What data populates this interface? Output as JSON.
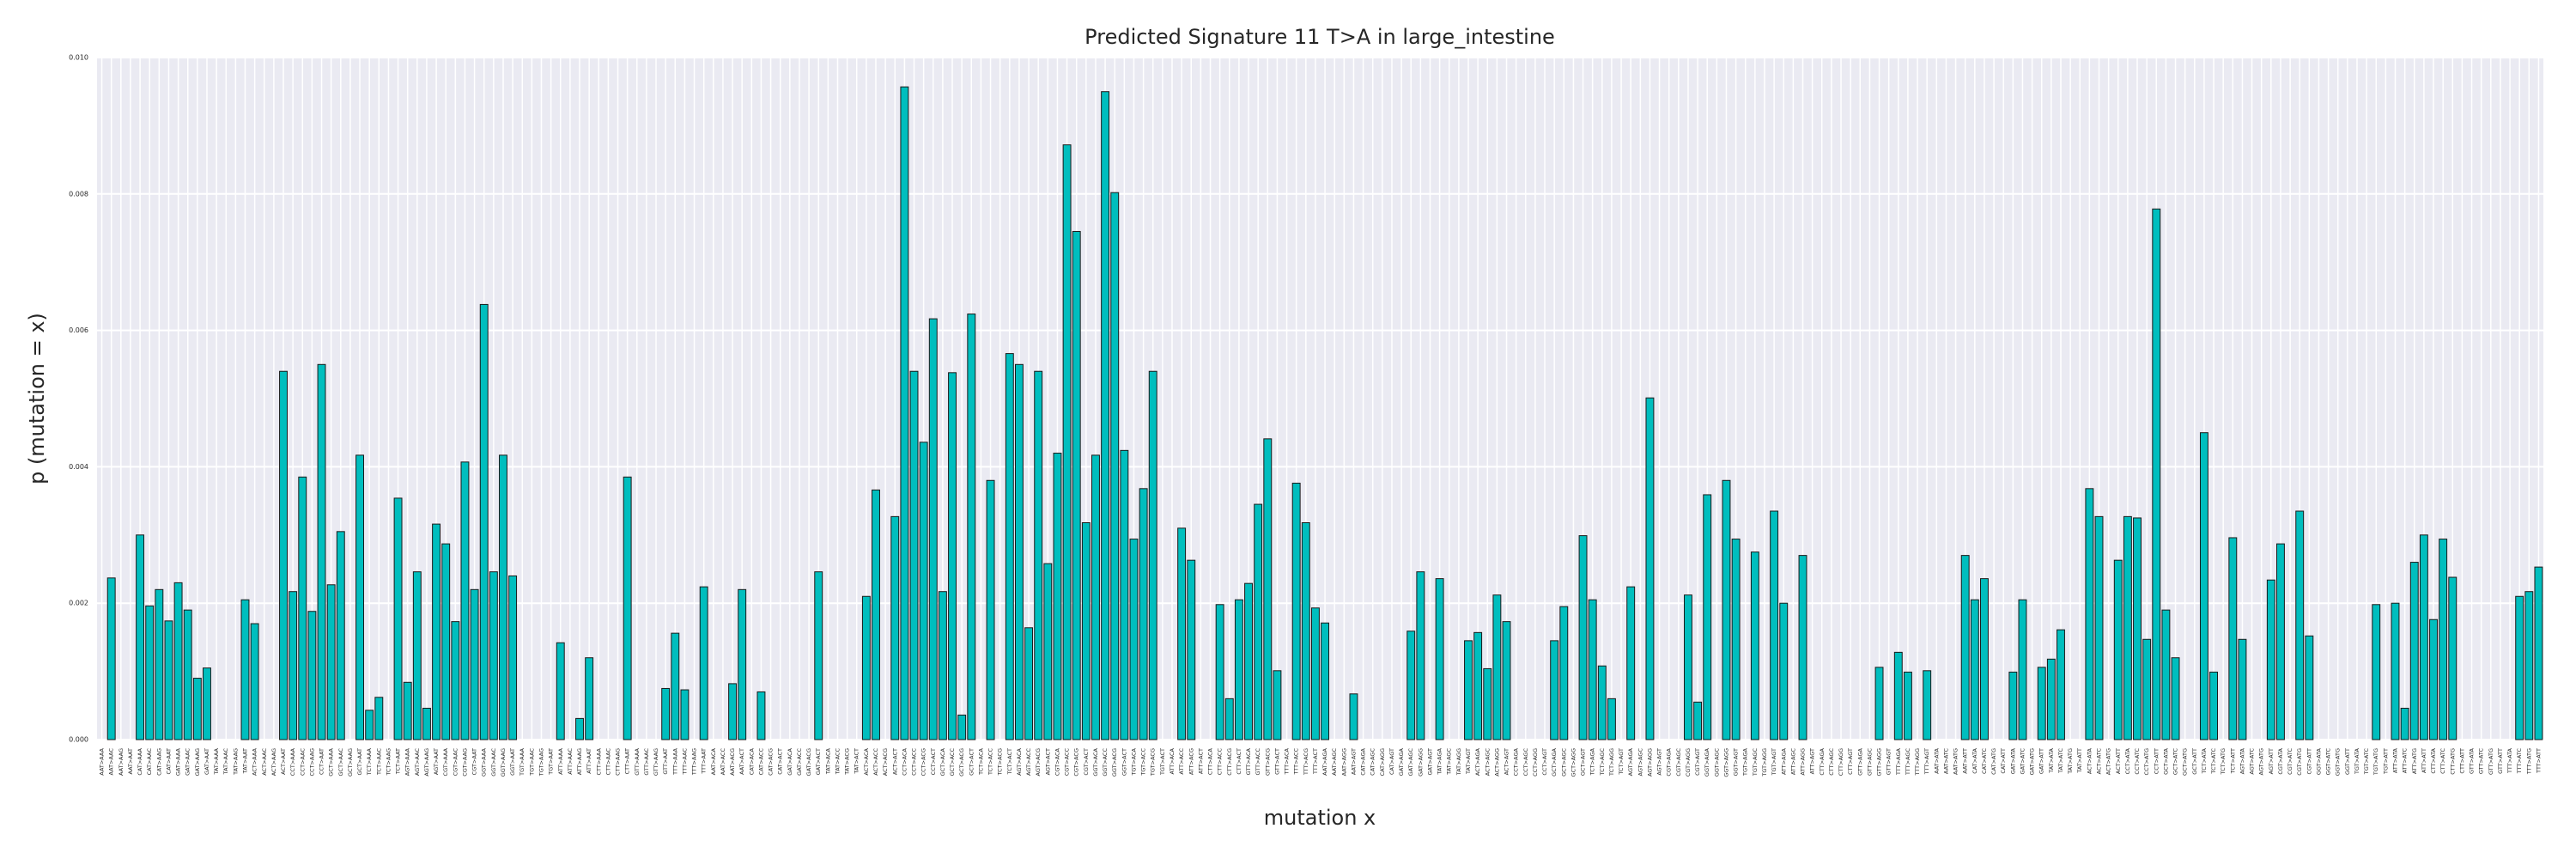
{
  "chart_data": {
    "type": "bar",
    "title": "Predicted Signature 11 T>A in large_intestine",
    "x_label": "mutation x",
    "y_label": "p (mutation = x)",
    "color": "#00bebe",
    "edge_color": "#1a1a1a",
    "background": "#eaeaf2",
    "grid": true,
    "ylim": [
      0,
      0.01
    ],
    "yticks": [
      {
        "value": 0,
        "label": "0.000"
      },
      {
        "value": 0.002,
        "label": "0.002"
      },
      {
        "value": 0.004,
        "label": "0.004"
      },
      {
        "value": 0.006,
        "label": "0.006"
      },
      {
        "value": 0.008,
        "label": "0.008"
      },
      {
        "value": 0.01,
        "label": "0.010"
      }
    ],
    "categories": [
      "AAT>AAA",
      "AAT>AAC",
      "AAT>AAG",
      "AAT>AAT",
      "CAT>AAA",
      "CAT>AAC",
      "CAT>AAG",
      "CAT>AAT",
      "GAT>AAA",
      "GAT>AAC",
      "GAT>AAG",
      "GAT>AAT",
      "TAT>AAA",
      "TAT>AAC",
      "TAT>AAG",
      "TAT>AAT",
      "ACT>AAA",
      "ACT>AAC",
      "ACT>AAG",
      "ACT>AAT",
      "CCT>AAA",
      "CCT>AAC",
      "CCT>AAG",
      "CCT>AAT",
      "GCT>AAA",
      "GCT>AAC",
      "GCT>AAG",
      "GCT>AAT",
      "TCT>AAA",
      "TCT>AAC",
      "TCT>AAG",
      "TCT>AAT",
      "AGT>AAA",
      "AGT>AAC",
      "AGT>AAG",
      "AGT>AAT",
      "CGT>AAA",
      "CGT>AAC",
      "CGT>AAG",
      "CGT>AAT",
      "GGT>AAA",
      "GGT>AAC",
      "GGT>AAG",
      "GGT>AAT",
      "TGT>AAA",
      "TGT>AAC",
      "TGT>AAG",
      "TGT>AAT",
      "ATT>AAA",
      "ATT>AAC",
      "ATT>AAG",
      "ATT>AAT",
      "CTT>AAA",
      "CTT>AAC",
      "CTT>AAG",
      "CTT>AAT",
      "GTT>AAA",
      "GTT>AAC",
      "GTT>AAG",
      "GTT>AAT",
      "TTT>AAA",
      "TTT>AAC",
      "TTT>AAG",
      "TTT>AAT",
      "AAT>ACA",
      "AAT>ACC",
      "AAT>ACG",
      "AAT>ACT",
      "CAT>ACA",
      "CAT>ACC",
      "CAT>ACG",
      "CAT>ACT",
      "GAT>ACA",
      "GAT>ACC",
      "GAT>ACG",
      "GAT>ACT",
      "TAT>ACA",
      "TAT>ACC",
      "TAT>ACG",
      "TAT>ACT",
      "ACT>ACA",
      "ACT>ACC",
      "ACT>ACG",
      "ACT>ACT",
      "CCT>ACA",
      "CCT>ACC",
      "CCT>ACG",
      "CCT>ACT",
      "GCT>ACA",
      "GCT>ACC",
      "GCT>ACG",
      "GCT>ACT",
      "TCT>ACA",
      "TCT>ACC",
      "TCT>ACG",
      "TCT>ACT",
      "AGT>ACA",
      "AGT>ACC",
      "AGT>ACG",
      "AGT>ACT",
      "CGT>ACA",
      "CGT>ACC",
      "CGT>ACG",
      "CGT>ACT",
      "GGT>ACA",
      "GGT>ACC",
      "GGT>ACG",
      "GGT>ACT",
      "TGT>ACA",
      "TGT>ACC",
      "TGT>ACG",
      "TGT>ACT",
      "ATT>ACA",
      "ATT>ACC",
      "ATT>ACG",
      "ATT>ACT",
      "CTT>ACA",
      "CTT>ACC",
      "CTT>ACG",
      "CTT>ACT",
      "GTT>ACA",
      "GTT>ACC",
      "GTT>ACG",
      "GTT>ACT",
      "TTT>ACA",
      "TTT>ACC",
      "TTT>ACG",
      "TTT>ACT",
      "AAT>AGA",
      "AAT>AGC",
      "AAT>AGG",
      "AAT>AGT",
      "CAT>AGA",
      "CAT>AGC",
      "CAT>AGG",
      "CAT>AGT",
      "GAT>AGA",
      "GAT>AGC",
      "GAT>AGG",
      "GAT>AGT",
      "TAT>AGA",
      "TAT>AGC",
      "TAT>AGG",
      "TAT>AGT",
      "ACT>AGA",
      "ACT>AGC",
      "ACT>AGG",
      "ACT>AGT",
      "CCT>AGA",
      "CCT>AGC",
      "CCT>AGG",
      "CCT>AGT",
      "GCT>AGA",
      "GCT>AGC",
      "GCT>AGG",
      "GCT>AGT",
      "TCT>AGA",
      "TCT>AGC",
      "TCT>AGG",
      "TCT>AGT",
      "AGT>AGA",
      "AGT>AGC",
      "AGT>AGG",
      "AGT>AGT",
      "CGT>AGA",
      "CGT>AGC",
      "CGT>AGG",
      "CGT>AGT",
      "GGT>AGA",
      "GGT>AGC",
      "GGT>AGG",
      "GGT>AGT",
      "TGT>AGA",
      "TGT>AGC",
      "TGT>AGG",
      "TGT>AGT",
      "ATT>AGA",
      "ATT>AGC",
      "ATT>AGG",
      "ATT>AGT",
      "CTT>AGA",
      "CTT>AGC",
      "CTT>AGG",
      "CTT>AGT",
      "GTT>AGA",
      "GTT>AGC",
      "GTT>AGG",
      "GTT>AGT",
      "TTT>AGA",
      "TTT>AGC",
      "TTT>AGG",
      "TTT>AGT",
      "AAT>ATA",
      "AAT>ATC",
      "AAT>ATG",
      "AAT>ATT",
      "CAT>ATA",
      "CAT>ATC",
      "CAT>ATG",
      "CAT>ATT",
      "GAT>ATA",
      "GAT>ATC",
      "GAT>ATG",
      "GAT>ATT",
      "TAT>ATA",
      "TAT>ATC",
      "TAT>ATG",
      "TAT>ATT",
      "ACT>ATA",
      "ACT>ATC",
      "ACT>ATG",
      "ACT>ATT",
      "CCT>ATA",
      "CCT>ATC",
      "CCT>ATG",
      "CCT>ATT",
      "GCT>ATA",
      "GCT>ATC",
      "GCT>ATG",
      "GCT>ATT",
      "TCT>ATA",
      "TCT>ATC",
      "TCT>ATG",
      "TCT>ATT",
      "AGT>ATA",
      "AGT>ATC",
      "AGT>ATG",
      "AGT>ATT",
      "CGT>ATA",
      "CGT>ATC",
      "CGT>ATG",
      "CGT>ATT",
      "GGT>ATA",
      "GGT>ATC",
      "GGT>ATG",
      "GGT>ATT",
      "TGT>ATA",
      "TGT>ATC",
      "TGT>ATG",
      "TGT>ATT",
      "ATT>ATA",
      "ATT>ATC",
      "ATT>ATG",
      "ATT>ATT",
      "CTT>ATA",
      "CTT>ATC",
      "CTT>ATG",
      "CTT>ATT",
      "GTT>ATA",
      "GTT>ATC",
      "GTT>ATG",
      "GTT>ATT",
      "TTT>ATA",
      "TTT>ATC",
      "TTT>ATG",
      "TTT>ATT"
    ],
    "values": [
      0,
      0.00237,
      0,
      0,
      0.003,
      0.00196,
      0.0022,
      0.00174,
      0.0023,
      0.0019,
      0.0009,
      0.00105,
      0,
      0,
      0,
      0.00205,
      0.0017,
      0,
      0,
      0.0054,
      0.00217,
      0.00385,
      0.00188,
      0.0055,
      0.00227,
      0.00305,
      0,
      0.00417,
      0.00043,
      0.00062,
      0,
      0.00354,
      0.00084,
      0.00246,
      0.00046,
      0.00316,
      0.00287,
      0.00173,
      0.00407,
      0.0022,
      0.00638,
      0.00246,
      0.00417,
      0.0024,
      0,
      0,
      0,
      0,
      0.00142,
      0,
      0.00031,
      0.0012,
      0,
      0,
      0,
      0.00385,
      0,
      0,
      0,
      0.00075,
      0.00156,
      0.00073,
      0,
      0.00224,
      0,
      0,
      0.00082,
      0.0022,
      0,
      0.0007,
      0,
      0,
      0,
      0,
      0,
      0.00246,
      0,
      0,
      0,
      0,
      0.0021,
      0.00366,
      0,
      0.00327,
      0.00957,
      0.0054,
      0.00436,
      0.00617,
      0.00217,
      0.00538,
      0.00036,
      0.00624,
      0,
      0.0038,
      0,
      0.00566,
      0.0055,
      0.00164,
      0.0054,
      0.00258,
      0.0042,
      0.00872,
      0.00745,
      0.00318,
      0.00417,
      0.0095,
      0.00802,
      0.00424,
      0.00294,
      0.00368,
      0.0054,
      0,
      0,
      0.0031,
      0.00263,
      0,
      0,
      0.00198,
      0.0006,
      0.00205,
      0.00229,
      0.00345,
      0.00441,
      0.00101,
      0,
      0.00376,
      0.00318,
      0.00193,
      0.00171,
      0,
      0,
      0.00067,
      0,
      0,
      0,
      0,
      0,
      0.00159,
      0.00246,
      0,
      0.00236,
      0,
      0,
      0.00145,
      0.00157,
      0.00104,
      0.00212,
      0.00173,
      0,
      0,
      0,
      0,
      0.00145,
      0.00195,
      0,
      0.00299,
      0.00205,
      0.00108,
      0.0006,
      0,
      0.00224,
      0,
      0.00501,
      0,
      0,
      0,
      0.00212,
      0.00055,
      0.00359,
      0,
      0.0038,
      0.00294,
      0,
      0.00275,
      0,
      0.00335,
      0.002,
      0,
      0.0027,
      0,
      0,
      0,
      0,
      0,
      0,
      0,
      0.00106,
      0,
      0.00128,
      0.00099,
      0,
      0.00101,
      0,
      0,
      0,
      0.0027,
      0.00205,
      0.00236,
      0,
      0,
      0.00099,
      0.00205,
      0,
      0.00106,
      0.00118,
      0.00161,
      0,
      0,
      0.00368,
      0.00327,
      0,
      0.00263,
      0.00327,
      0.00325,
      0.00147,
      0.00778,
      0.0019,
      0.0012,
      0,
      0,
      0.0045,
      0.00099,
      0,
      0.00296,
      0.00147,
      0,
      0,
      0.00234,
      0.00287,
      0,
      0.00335,
      0.00152,
      0,
      0,
      0,
      0,
      0,
      0,
      0.00198,
      0,
      0.002,
      0.00046,
      0.0026,
      0.003,
      0.00176,
      0.00294,
      0.00238,
      0,
      0,
      0,
      0,
      0,
      0,
      0.0021,
      0.00217,
      0.00253
    ]
  }
}
